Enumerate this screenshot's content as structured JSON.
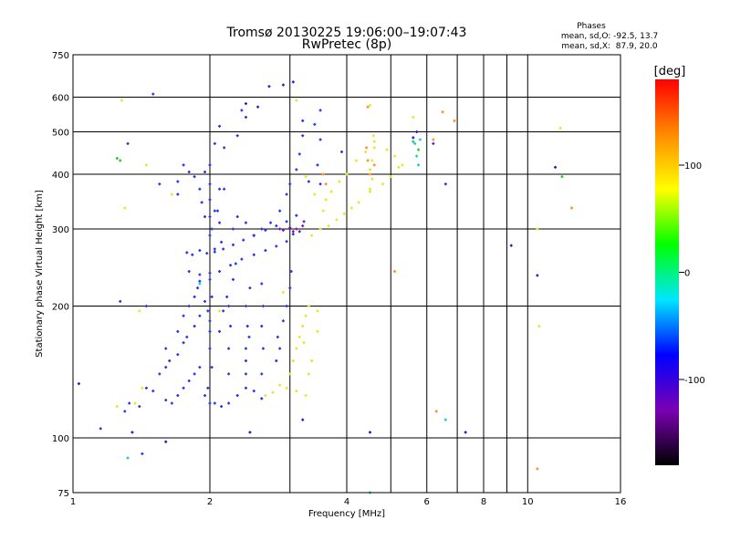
{
  "chart_data": {
    "type": "scatter",
    "title": "Tromsø 20130225 19:06:00–19:07:43",
    "subtitle": "RwPretec (8p)",
    "stats": {
      "heading": "Phases",
      "line1": "mean, sd,O: -92.5, 13.7",
      "line2": "mean, sd,X:  87.9, 20.0"
    },
    "xlabel": "Frequency [MHz]",
    "ylabel": "Stationary phase Virtual Height [km]",
    "x_scale": "log",
    "y_scale": "log",
    "xlim": [
      1,
      16
    ],
    "ylim": [
      75,
      750
    ],
    "x_ticks": [
      1,
      2,
      4,
      6,
      8,
      10,
      16
    ],
    "x_minor_grid": [
      3,
      5,
      7,
      9
    ],
    "y_ticks": [
      75,
      100,
      200,
      300,
      400,
      500,
      600,
      750
    ],
    "y_minor_grid": [
      150
    ],
    "grid": true,
    "colorbar": {
      "label": "[deg]",
      "range": [
        -180,
        180
      ],
      "ticks": [
        100,
        0,
        -100
      ],
      "colors": [
        "#000000",
        "#7a00b3",
        "#0000ff",
        "#00e6ff",
        "#00ff00",
        "#ffff00",
        "#ff8c00",
        "#ff0000"
      ]
    },
    "series": [
      {
        "point_color": "#2233e6",
        "points": [
          [
            1.78,
            265
          ],
          [
            1.83,
            262
          ],
          [
            1.9,
            268
          ],
          [
            1.97,
            264
          ],
          [
            2.05,
            266
          ],
          [
            2.14,
            270
          ],
          [
            2.25,
            276
          ],
          [
            2.37,
            283
          ],
          [
            2.5,
            290
          ],
          [
            2.65,
            298
          ],
          [
            2.8,
            305
          ],
          [
            2.95,
            312
          ],
          [
            3.1,
            322
          ],
          [
            1.8,
            240
          ],
          [
            1.9,
            236
          ],
          [
            2.0,
            238
          ],
          [
            2.1,
            240
          ],
          [
            2.22,
            248
          ],
          [
            2.35,
            256
          ],
          [
            2.5,
            262
          ],
          [
            2.65,
            268
          ],
          [
            2.8,
            274
          ],
          [
            2.95,
            281
          ],
          [
            3.05,
            292
          ],
          [
            2.0,
            290
          ],
          [
            2.0,
            320
          ],
          [
            2.0,
            350
          ],
          [
            2.0,
            380
          ],
          [
            2.02,
            300
          ],
          [
            2.05,
            270
          ],
          [
            2.0,
            230
          ],
          [
            2.02,
            210
          ],
          [
            1.98,
            195
          ],
          [
            2.0,
            175
          ],
          [
            2.0,
            160
          ],
          [
            2.02,
            145
          ],
          [
            1.98,
            130
          ],
          [
            2.0,
            120
          ],
          [
            1.85,
            395
          ],
          [
            1.9,
            370
          ],
          [
            1.92,
            345
          ],
          [
            1.95,
            320
          ],
          [
            2.08,
            330
          ],
          [
            2.1,
            310
          ],
          [
            2.12,
            280
          ],
          [
            2.25,
            300
          ],
          [
            2.3,
            320
          ],
          [
            2.4,
            310
          ],
          [
            2.5,
            290
          ],
          [
            2.6,
            300
          ],
          [
            2.72,
            310
          ],
          [
            2.85,
            330
          ],
          [
            2.95,
            360
          ],
          [
            3.0,
            380
          ],
          [
            3.1,
            410
          ],
          [
            3.15,
            445
          ],
          [
            3.2,
            490
          ],
          [
            3.2,
            530
          ],
          [
            1.75,
            420
          ],
          [
            1.7,
            385
          ],
          [
            1.8,
            405
          ],
          [
            1.95,
            405
          ],
          [
            2.05,
            470
          ],
          [
            2.1,
            515
          ],
          [
            2.15,
            460
          ],
          [
            2.35,
            560
          ],
          [
            2.4,
            540
          ],
          [
            2.3,
            490
          ],
          [
            3.5,
            480
          ],
          [
            3.4,
            520
          ],
          [
            3.5,
            560
          ],
          [
            3.45,
            420
          ],
          [
            3.5,
            380
          ],
          [
            3.3,
            385
          ],
          [
            1.3,
            115
          ],
          [
            1.33,
            120
          ],
          [
            1.4,
            118
          ],
          [
            1.45,
            130
          ],
          [
            1.5,
            128
          ],
          [
            1.55,
            140
          ],
          [
            1.6,
            145
          ],
          [
            1.63,
            150
          ],
          [
            1.7,
            155
          ],
          [
            1.75,
            165
          ],
          [
            1.78,
            170
          ],
          [
            1.85,
            180
          ],
          [
            1.9,
            190
          ],
          [
            1.6,
            122
          ],
          [
            1.65,
            120
          ],
          [
            1.7,
            125
          ],
          [
            1.75,
            130
          ],
          [
            1.8,
            135
          ],
          [
            1.85,
            140
          ],
          [
            1.9,
            145
          ],
          [
            1.95,
            125
          ],
          [
            2.05,
            120
          ],
          [
            2.12,
            118
          ],
          [
            2.2,
            120
          ],
          [
            2.3,
            125
          ],
          [
            2.4,
            130
          ],
          [
            2.5,
            128
          ],
          [
            2.6,
            123
          ],
          [
            1.6,
            160
          ],
          [
            1.7,
            175
          ],
          [
            1.75,
            190
          ],
          [
            1.8,
            200
          ],
          [
            1.85,
            210
          ],
          [
            1.88,
            220
          ],
          [
            1.9,
            228
          ],
          [
            1.95,
            205
          ],
          [
            2.0,
            185
          ],
          [
            2.4,
            140
          ],
          [
            2.4,
            160
          ],
          [
            2.42,
            180
          ],
          [
            2.4,
            200
          ],
          [
            2.45,
            220
          ],
          [
            2.4,
            150
          ],
          [
            2.44,
            170
          ],
          [
            2.6,
            140
          ],
          [
            2.62,
            160
          ],
          [
            2.6,
            180
          ],
          [
            2.62,
            200
          ],
          [
            2.6,
            225
          ],
          [
            2.2,
            140
          ],
          [
            2.2,
            160
          ],
          [
            2.22,
            180
          ],
          [
            2.2,
            200
          ],
          [
            2.25,
            230
          ],
          [
            2.28,
            250
          ],
          [
            2.1,
            175
          ],
          [
            2.14,
            195
          ],
          [
            2.18,
            210
          ],
          [
            2.8,
            150
          ],
          [
            2.85,
            160
          ],
          [
            2.82,
            170
          ],
          [
            2.9,
            185
          ],
          [
            2.95,
            200
          ],
          [
            3.0,
            220
          ],
          [
            3.02,
            240
          ],
          [
            1.15,
            105
          ],
          [
            1.42,
            92
          ],
          [
            1.32,
            470
          ],
          [
            1.5,
            610
          ],
          [
            1.45,
            200
          ],
          [
            1.27,
            205
          ],
          [
            1.55,
            380
          ],
          [
            1.7,
            360
          ],
          [
            2.05,
            330
          ],
          [
            2.0,
            420
          ],
          [
            2.15,
            370
          ],
          [
            2.1,
            370
          ],
          [
            3.9,
            450
          ],
          [
            6.2,
            470
          ],
          [
            6.6,
            380
          ]
        ]
      },
      {
        "point_color": "#e6e622",
        "points": [
          [
            3.25,
            125
          ],
          [
            3.1,
            128
          ],
          [
            2.95,
            130
          ],
          [
            2.85,
            132
          ],
          [
            2.75,
            127
          ],
          [
            2.65,
            125
          ],
          [
            3.0,
            140
          ],
          [
            3.05,
            150
          ],
          [
            3.1,
            160
          ],
          [
            3.15,
            170
          ],
          [
            3.2,
            180
          ],
          [
            3.25,
            190
          ],
          [
            3.22,
            165
          ],
          [
            3.3,
            140
          ],
          [
            3.35,
            150
          ],
          [
            3.3,
            200
          ],
          [
            3.45,
            175
          ],
          [
            3.45,
            195
          ],
          [
            3.35,
            290
          ],
          [
            3.5,
            300
          ],
          [
            3.65,
            305
          ],
          [
            3.8,
            315
          ],
          [
            3.95,
            325
          ],
          [
            4.1,
            335
          ],
          [
            4.25,
            345
          ],
          [
            4.5,
            365
          ],
          [
            4.8,
            380
          ],
          [
            5.0,
            395
          ],
          [
            5.2,
            415
          ],
          [
            3.25,
            395
          ],
          [
            3.4,
            360
          ],
          [
            3.55,
            330
          ],
          [
            3.6,
            350
          ],
          [
            3.7,
            365
          ],
          [
            3.85,
            385
          ],
          [
            4.0,
            400
          ],
          [
            4.2,
            430
          ],
          [
            4.4,
            450
          ],
          [
            4.6,
            475
          ],
          [
            4.9,
            455
          ],
          [
            5.1,
            440
          ],
          [
            5.3,
            420
          ],
          [
            4.5,
            370
          ],
          [
            4.55,
            390
          ],
          [
            4.5,
            410
          ],
          [
            4.55,
            430
          ],
          [
            4.6,
            460
          ],
          [
            4.58,
            490
          ],
          [
            1.28,
            590
          ],
          [
            1.45,
            420
          ],
          [
            1.3,
            335
          ],
          [
            1.4,
            195
          ],
          [
            1.42,
            130
          ],
          [
            1.37,
            120
          ],
          [
            1.25,
            118
          ],
          [
            1.65,
            360
          ],
          [
            2.1,
            195
          ],
          [
            2.9,
            215
          ],
          [
            3.1,
            590
          ],
          [
            4.5,
            575
          ],
          [
            5.6,
            540
          ],
          [
            10.5,
            300
          ],
          [
            10.6,
            180
          ],
          [
            11.8,
            510
          ]
        ]
      },
      {
        "point_color": "#ff8c1a",
        "points": [
          [
            4.45,
            430
          ],
          [
            4.5,
            400
          ],
          [
            4.42,
            460
          ],
          [
            4.6,
            420
          ],
          [
            3.55,
            400
          ],
          [
            3.6,
            380
          ],
          [
            6.5,
            555
          ],
          [
            6.9,
            530
          ],
          [
            5.1,
            240
          ],
          [
            6.2,
            480
          ],
          [
            10.5,
            85
          ],
          [
            12.5,
            335
          ],
          [
            6.3,
            115
          ],
          [
            4.45,
            570
          ]
        ]
      },
      {
        "point_color": "#7a14b8",
        "points": [
          [
            2.85,
            300
          ],
          [
            2.9,
            298
          ],
          [
            3.0,
            302
          ],
          [
            3.05,
            296
          ],
          [
            3.1,
            300
          ],
          [
            3.15,
            296
          ],
          [
            3.2,
            305
          ],
          [
            3.22,
            312
          ]
        ]
      },
      {
        "point_color": "#28c828",
        "points": [
          [
            1.27,
            430
          ],
          [
            1.25,
            435
          ],
          [
            11.9,
            395
          ],
          [
            5.75,
            455
          ],
          [
            5.6,
            475
          ]
        ]
      },
      {
        "point_color": "#14c8dc",
        "points": [
          [
            5.7,
            440
          ],
          [
            5.65,
            470
          ],
          [
            5.75,
            420
          ],
          [
            5.8,
            480
          ],
          [
            6.6,
            110
          ],
          [
            1.32,
            90
          ],
          [
            1.9,
            225
          ],
          [
            4.5,
            75
          ]
        ]
      },
      {
        "point_color": "#1a1ad2",
        "points": [
          [
            1.03,
            133
          ],
          [
            1.35,
            103
          ],
          [
            1.6,
            98
          ],
          [
            2.45,
            103
          ],
          [
            3.2,
            110
          ],
          [
            4.5,
            103
          ],
          [
            7.3,
            103
          ],
          [
            9.2,
            275
          ],
          [
            10.5,
            235
          ],
          [
            11.5,
            415
          ],
          [
            5.7,
            500
          ],
          [
            5.6,
            485
          ],
          [
            3.05,
            650
          ],
          [
            2.9,
            640
          ],
          [
            2.7,
            635
          ],
          [
            2.4,
            580
          ],
          [
            2.55,
            570
          ]
        ]
      }
    ]
  }
}
